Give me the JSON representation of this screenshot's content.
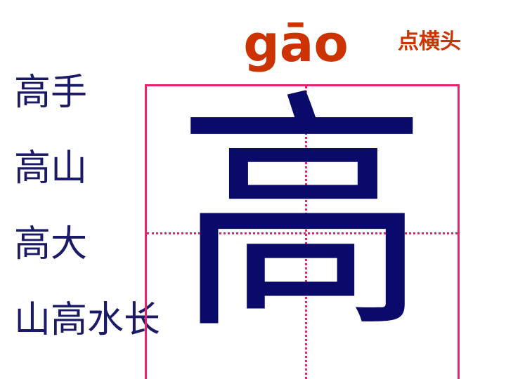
{
  "pinyin": "gāo",
  "stroke_note": "点横头",
  "character": "高",
  "words": [
    "高手",
    "高山",
    "高大",
    "山高水长"
  ],
  "colors": {
    "pinyin": "#cc3300",
    "words": "#1a1a66",
    "character": "#0a0a6b",
    "grid": "#e0266e"
  }
}
